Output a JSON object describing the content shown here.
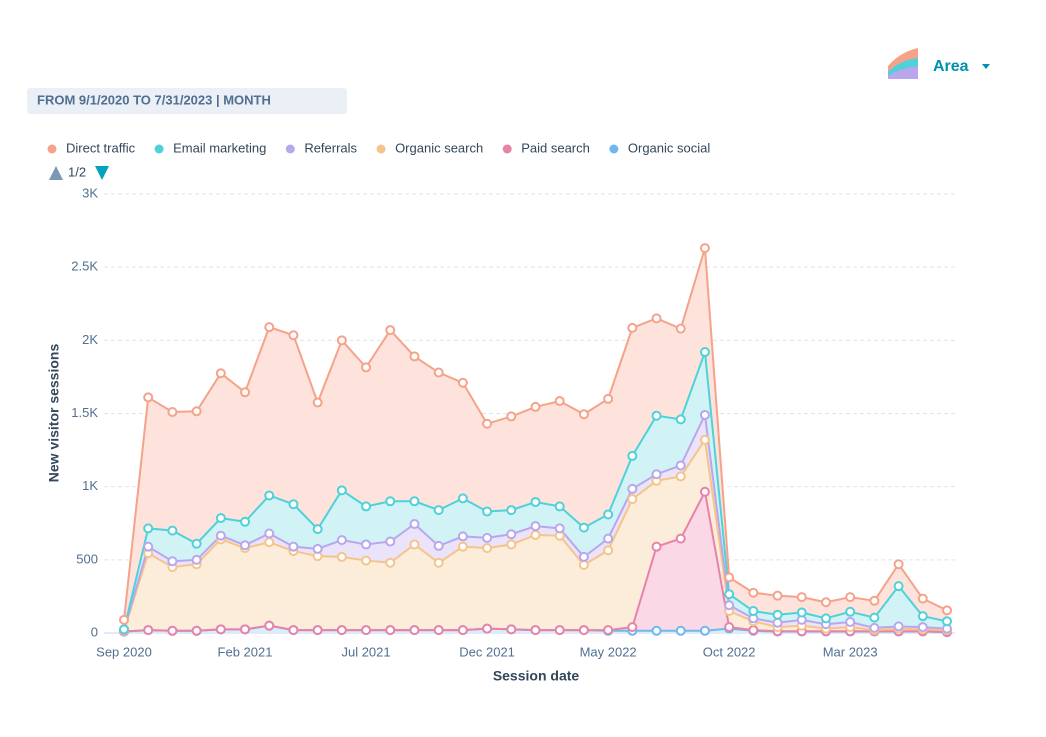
{
  "chart_data": {
    "type": "stacked_area",
    "date_range": "FROM 9/1/2020 TO 7/31/2023 | MONTH",
    "chart_type_button": "Area",
    "legend_page": "1/2",
    "x_label": "Session date",
    "y_label": "New visitor sessions",
    "categories": [
      "Sep 2020",
      null,
      null,
      null,
      null,
      "Feb 2021",
      null,
      null,
      null,
      null,
      "Jul 2021",
      null,
      null,
      null,
      null,
      "Dec 2021",
      null,
      null,
      null,
      null,
      "May 2022",
      null,
      null,
      null,
      null,
      "Oct 2022",
      null,
      null,
      null,
      null,
      "Mar 2023",
      null,
      null,
      null,
      null
    ],
    "ylim": [
      0,
      3000
    ],
    "yticks": [
      0,
      500,
      {
        "value": 1000,
        "label": "1K"
      },
      {
        "value": 1500,
        "label": "1.5K"
      },
      {
        "value": 2000,
        "label": "2K"
      },
      {
        "value": 2500,
        "label": "2.5K"
      },
      {
        "value": 3000,
        "label": "3K"
      }
    ],
    "grid": true,
    "series": [
      {
        "name": "Direct traffic",
        "color": "#f5a28a",
        "fill": "#fde0d8",
        "values": [
          65,
          895,
          810,
          905,
          990,
          885,
          1150,
          1155,
          865,
          1025,
          950,
          1170,
          990,
          940,
          790,
          600,
          640,
          650,
          720,
          775,
          790,
          875,
          665,
          620,
          710,
          115,
          125,
          130,
          105,
          110,
          100,
          115,
          150,
          120,
          75
        ]
      },
      {
        "name": "Email marketing",
        "color": "#4fd1d9",
        "fill": "#ccf2f4",
        "values": [
          5,
          125,
          210,
          110,
          120,
          160,
          260,
          290,
          135,
          340,
          260,
          275,
          155,
          245,
          260,
          180,
          165,
          165,
          150,
          200,
          165,
          225,
          400,
          315,
          430,
          75,
          50,
          55,
          50,
          40,
          70,
          70,
          275,
          75,
          50
        ]
      },
      {
        "name": "Referrals",
        "color": "#b9a7ee",
        "fill": "#e8e0fa",
        "values": [
          5,
          45,
          40,
          30,
          25,
          20,
          60,
          30,
          50,
          115,
          110,
          145,
          140,
          115,
          70,
          70,
          70,
          60,
          50,
          55,
          80,
          70,
          45,
          75,
          170,
          40,
          20,
          30,
          40,
          30,
          35,
          15,
          15,
          15,
          10
        ]
      },
      {
        "name": "Organic search",
        "color": "#f5c48a",
        "fill": "#fcebd6",
        "values": [
          5,
          525,
          435,
          455,
          615,
          555,
          570,
          540,
          505,
          500,
          475,
          460,
          585,
          460,
          570,
          550,
          580,
          650,
          645,
          445,
          545,
          875,
          450,
          425,
          355,
          110,
          60,
          28,
          38,
          18,
          28,
          8,
          18,
          13,
          12
        ]
      },
      {
        "name": "Paid search",
        "color": "#e882a9",
        "fill": "#f9d4e2",
        "values": [
          0,
          0,
          0,
          0,
          0,
          0,
          0,
          0,
          0,
          0,
          0,
          0,
          0,
          0,
          0,
          0,
          0,
          0,
          0,
          0,
          5,
          25,
          575,
          630,
          950,
          10,
          5,
          2,
          2,
          2,
          2,
          2,
          2,
          2,
          3
        ]
      },
      {
        "name": "Organic social",
        "color": "#6fb8f0",
        "fill": "#d6ebfb",
        "values": [
          10,
          20,
          15,
          15,
          25,
          25,
          50,
          20,
          20,
          20,
          20,
          20,
          20,
          20,
          20,
          30,
          25,
          20,
          20,
          20,
          15,
          15,
          15,
          15,
          15,
          30,
          15,
          10,
          10,
          10,
          10,
          10,
          10,
          10,
          5
        ]
      }
    ]
  }
}
